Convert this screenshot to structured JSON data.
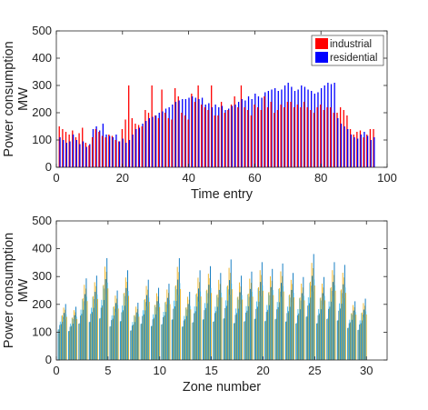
{
  "chart_data": [
    {
      "type": "bar",
      "title": "",
      "xlabel": "Time entry",
      "ylabel": "Power consumption\nMW",
      "xlim": [
        0,
        100
      ],
      "ylim": [
        0,
        500
      ],
      "xticks": [
        "0",
        "20",
        "40",
        "60",
        "80",
        "100"
      ],
      "yticks": [
        "0",
        "100",
        "200",
        "300",
        "400",
        "500"
      ],
      "legend_position": "top-right",
      "grid": false,
      "x": [
        1,
        2,
        3,
        4,
        5,
        6,
        7,
        8,
        9,
        10,
        11,
        12,
        13,
        14,
        15,
        16,
        17,
        18,
        19,
        20,
        21,
        22,
        23,
        24,
        25,
        26,
        27,
        28,
        29,
        30,
        31,
        32,
        33,
        34,
        35,
        36,
        37,
        38,
        39,
        40,
        41,
        42,
        43,
        44,
        45,
        46,
        47,
        48,
        49,
        50,
        51,
        52,
        53,
        54,
        55,
        56,
        57,
        58,
        59,
        60,
        61,
        62,
        63,
        64,
        65,
        66,
        67,
        68,
        69,
        70,
        71,
        72,
        73,
        74,
        75,
        76,
        77,
        78,
        79,
        80,
        81,
        82,
        83,
        84,
        85,
        86,
        87,
        88,
        89,
        90,
        91,
        92,
        93,
        94,
        95,
        96
      ],
      "series": [
        {
          "name": "industrial",
          "color": "#ff0000",
          "values": [
            150,
            140,
            130,
            120,
            135,
            110,
            125,
            145,
            90,
            80,
            110,
            140,
            130,
            115,
            110,
            120,
            115,
            100,
            95,
            140,
            175,
            300,
            180,
            160,
            155,
            150,
            210,
            200,
            300,
            190,
            180,
            285,
            200,
            180,
            175,
            290,
            260,
            200,
            190,
            175,
            270,
            240,
            300,
            230,
            220,
            210,
            300,
            190,
            190,
            240,
            200,
            210,
            230,
            260,
            220,
            300,
            220,
            210,
            190,
            230,
            220,
            210,
            260,
            220,
            240,
            200,
            210,
            230,
            220,
            240,
            240,
            220,
            230,
            220,
            240,
            220,
            210,
            200,
            220,
            230,
            210,
            220,
            220,
            200,
            200,
            220,
            210,
            190,
            140,
            120,
            130,
            135,
            110,
            120,
            140,
            140
          ]
        },
        {
          "name": "residential",
          "color": "#0000ff",
          "values": [
            110,
            100,
            90,
            95,
            120,
            100,
            85,
            95,
            75,
            85,
            140,
            150,
            135,
            160,
            120,
            115,
            110,
            120,
            95,
            105,
            90,
            100,
            120,
            140,
            145,
            160,
            170,
            180,
            185,
            190,
            200,
            205,
            215,
            220,
            230,
            240,
            245,
            250,
            250,
            255,
            260,
            255,
            250,
            255,
            230,
            235,
            220,
            230,
            220,
            225,
            210,
            215,
            225,
            230,
            240,
            250,
            245,
            260,
            250,
            270,
            260,
            255,
            275,
            280,
            285,
            290,
            280,
            285,
            300,
            310,
            295,
            280,
            285,
            300,
            295,
            285,
            280,
            270,
            275,
            290,
            300,
            310,
            305,
            310,
            180,
            160,
            150,
            140,
            120,
            110,
            105,
            120,
            130,
            115,
            100,
            110
          ]
        }
      ]
    },
    {
      "type": "bar",
      "title": "",
      "xlabel": "Zone number",
      "ylabel": "Power consumption\nMW",
      "xlim": [
        0,
        32
      ],
      "ylim": [
        0,
        500
      ],
      "xticks": [
        "0",
        "5",
        "10",
        "15",
        "20",
        "25",
        "30"
      ],
      "yticks": [
        "0",
        "100",
        "200",
        "300",
        "400",
        "500"
      ],
      "grid": false,
      "series_colors": [
        "#0072bd",
        "#4dbeee",
        "#edb120"
      ],
      "zones": [
        1,
        2,
        3,
        4,
        5,
        6,
        7,
        8,
        9,
        10,
        11,
        12,
        13,
        14,
        15,
        16,
        17,
        18,
        19,
        20,
        21,
        22,
        23,
        24,
        25,
        26,
        27,
        28,
        29,
        30
      ],
      "zone_peaks": [
        205,
        195,
        300,
        310,
        375,
        255,
        330,
        210,
        295,
        265,
        280,
        375,
        250,
        330,
        345,
        320,
        370,
        310,
        325,
        360,
        335,
        355,
        320,
        305,
        390,
        305,
        360,
        350,
        215,
        225
      ],
      "zone_mins": [
        95,
        90,
        105,
        110,
        115,
        100,
        110,
        90,
        105,
        100,
        105,
        110,
        100,
        105,
        115,
        110,
        115,
        105,
        110,
        115,
        110,
        115,
        110,
        105,
        120,
        105,
        115,
        110,
        100,
        90
      ]
    }
  ]
}
